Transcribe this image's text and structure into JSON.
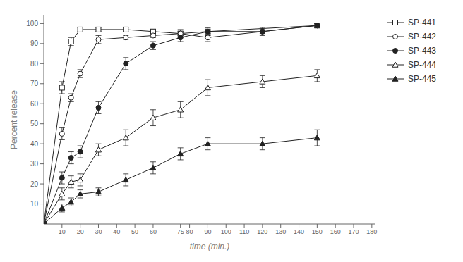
{
  "chart_data": {
    "type": "line",
    "x_label": "time (min.)",
    "y_label": "Percent release",
    "xlim": [
      0,
      182
    ],
    "ylim": [
      0,
      104
    ],
    "xticks": [
      10,
      20,
      30,
      40,
      50,
      60,
      75,
      80,
      90,
      100,
      110,
      120,
      130,
      140,
      150,
      160,
      170,
      180
    ],
    "yticks": [
      10,
      20,
      30,
      40,
      50,
      60,
      70,
      80,
      90,
      100
    ],
    "grid": false,
    "legend": "right",
    "series": [
      {
        "name": "SP-441",
        "x": [
          0,
          10,
          15,
          20,
          30,
          45,
          60,
          75,
          90,
          150
        ],
        "values": [
          0,
          68,
          91,
          97,
          97,
          97,
          96,
          95,
          96,
          99
        ],
        "yerr": [
          0,
          3,
          2,
          1,
          1,
          1,
          1,
          2,
          2,
          1
        ],
        "marker": "square-open",
        "color": "#222222",
        "line_style": "solid"
      },
      {
        "name": "SP-442",
        "x": [
          0,
          10,
          15,
          20,
          30,
          45,
          60,
          75,
          90,
          120,
          150
        ],
        "values": [
          0,
          45,
          63,
          75,
          92,
          93,
          94,
          95,
          93,
          96,
          99
        ],
        "yerr": [
          0,
          3,
          2,
          2,
          2,
          1,
          1,
          1,
          2,
          1,
          1
        ],
        "marker": "circle-open",
        "color": "#222222",
        "line_style": "solid"
      },
      {
        "name": "SP-443",
        "x": [
          0,
          10,
          15,
          20,
          30,
          45,
          60,
          75,
          90,
          120,
          150
        ],
        "values": [
          0,
          23,
          33,
          36,
          58,
          80,
          89,
          93,
          96,
          96,
          99
        ],
        "yerr": [
          0,
          3,
          3,
          3,
          3,
          3,
          2,
          2,
          2,
          2,
          1
        ],
        "marker": "circle",
        "color": "#222222",
        "line_style": "solid"
      },
      {
        "name": "SP-444",
        "x": [
          0,
          10,
          15,
          20,
          30,
          45,
          60,
          75,
          90,
          120,
          150
        ],
        "values": [
          0,
          15,
          21,
          22,
          37,
          43,
          53,
          57,
          68,
          71,
          74
        ],
        "yerr": [
          0,
          3,
          3,
          3,
          3,
          4,
          4,
          4,
          4,
          3,
          3
        ],
        "marker": "triangle-open",
        "color": "#222222",
        "line_style": "solid"
      },
      {
        "name": "SP-445",
        "x": [
          0,
          10,
          15,
          20,
          30,
          45,
          60,
          75,
          90,
          120,
          150
        ],
        "values": [
          0,
          8,
          11,
          15,
          16,
          22,
          28,
          35,
          40,
          40,
          43
        ],
        "yerr": [
          0,
          2,
          2,
          2,
          2,
          3,
          3,
          3,
          3,
          3,
          4
        ],
        "marker": "triangle",
        "color": "#222222",
        "line_style": "solid"
      }
    ]
  }
}
